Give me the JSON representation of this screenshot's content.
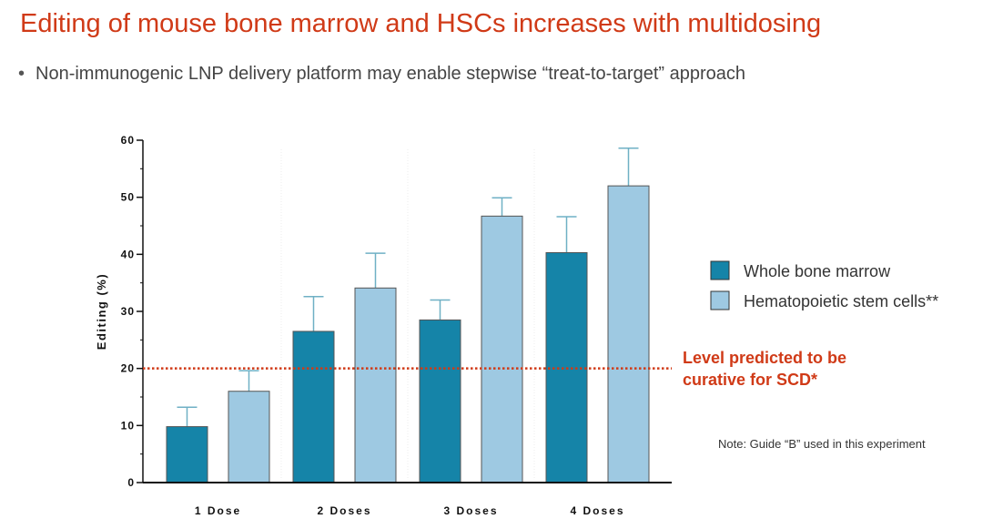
{
  "slide": {
    "title": "Editing of mouse bone marrow and HSCs increases with multidosing",
    "bullet": "Non-immunogenic LNP delivery platform may enable stepwise “treat-to-target” approach"
  },
  "colors": {
    "whole_bone_marrow": "#1584a8",
    "hsc": "#9ec9e2",
    "error_bar": "#6fb0c5",
    "threshold": "#d03a17",
    "title": "#d03a17"
  },
  "chart_data": {
    "type": "bar",
    "categories": [
      "1 Dose",
      "2 Doses",
      "3 Doses",
      "4 Doses"
    ],
    "ylabel": "Editing (%)",
    "ylim": [
      0,
      60
    ],
    "yticks": [
      0,
      10,
      20,
      30,
      40,
      50,
      60
    ],
    "grid": false,
    "legend_position": "right",
    "series": [
      {
        "name": "Whole bone marrow",
        "values": [
          9.8,
          26.5,
          28.5,
          40.3
        ],
        "error_upper": [
          13.2,
          32.6,
          32.0,
          46.6
        ]
      },
      {
        "name": "Hematopoietic stem cells**",
        "values": [
          16.0,
          34.1,
          46.7,
          52.0
        ],
        "error_upper": [
          19.6,
          40.2,
          49.9,
          58.6
        ]
      }
    ],
    "threshold": {
      "value": 20,
      "label_line1": "Level predicted to be",
      "label_line2": "curative for SCD*"
    },
    "note": "Note: Guide “B” used in this experiment"
  }
}
